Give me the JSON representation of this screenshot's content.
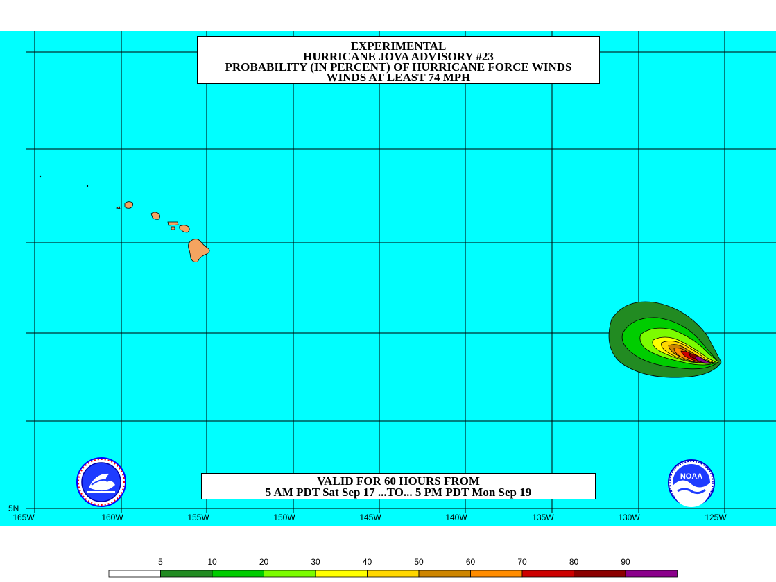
{
  "title": {
    "line1": "EXPERIMENTAL",
    "line2": "HURRICANE JOVA ADVISORY #23",
    "line3": "PROBABILITY (IN PERCENT) OF HURRICANE FORCE WINDS",
    "line4": "WINDS AT LEAST 74 MPH"
  },
  "valid": {
    "line1": "VALID FOR 60 HOURS FROM",
    "line2": "5 AM PDT Sat Sep 17 ...TO... 5 PM PDT Mon Sep 19"
  },
  "lat_label": "5N",
  "lon_labels": [
    "165W",
    "160W",
    "155W",
    "150W",
    "145W",
    "140W",
    "135W",
    "130W",
    "125W"
  ],
  "legend": {
    "labels": [
      "5",
      "10",
      "20",
      "30",
      "40",
      "50",
      "60",
      "70",
      "80",
      "90"
    ],
    "colors": [
      "#ffffff",
      "#228b22",
      "#00cd00",
      "#7cfc00",
      "#ffff00",
      "#ffd700",
      "#cd8500",
      "#ff8c00",
      "#cd0000",
      "#8b0000",
      "#8b008b"
    ]
  },
  "colors": {
    "ocean": "#00ffff",
    "land": "#f4a460",
    "grid": "#000000"
  },
  "logos": {
    "left": "nws-logo",
    "right": "noaa-logo",
    "noaa_text": "NOAA"
  }
}
